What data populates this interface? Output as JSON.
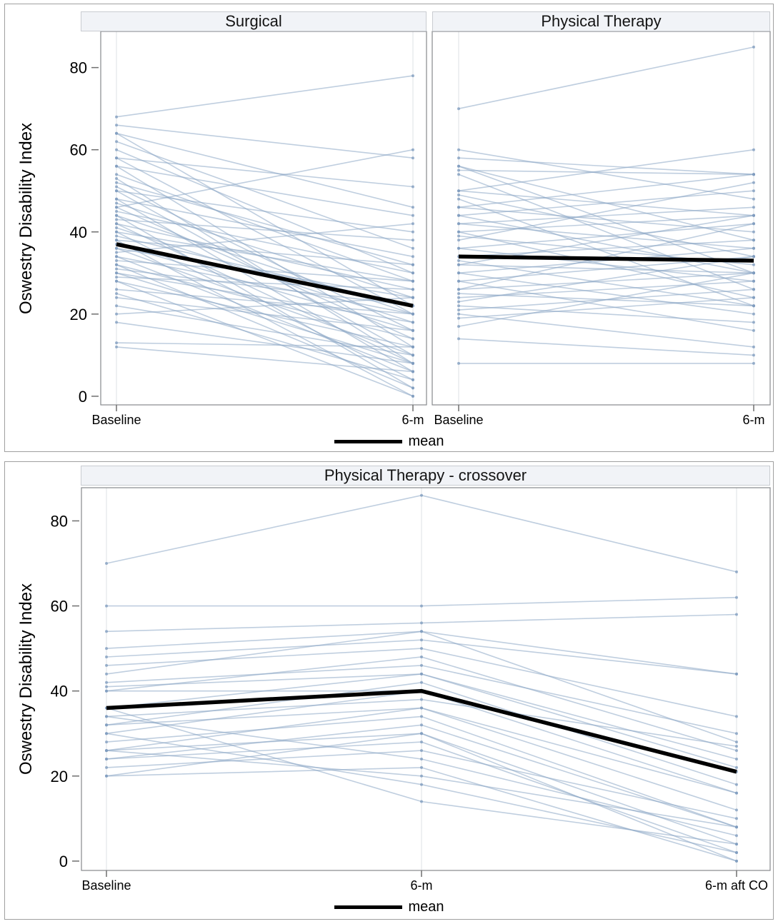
{
  "styles": {
    "line_color": "#8aa5c5",
    "line_opacity": 0.55,
    "dot_color": "#7d9bbd",
    "dot_opacity": 0.75,
    "mean_color": "#000000",
    "grid_color": "#e2e5e9",
    "plot_border_color": "#87898c",
    "tick_color": "#6f6f6f",
    "header_bg": "#f1f3f7",
    "header_border": "#c9ccd1"
  },
  "chart_data": [
    {
      "type": "line",
      "title": "",
      "ylabel": "Oswestry Disability Index",
      "yticks": [
        0,
        20,
        40,
        60,
        80
      ],
      "ylim": [
        -2.1,
        88.8
      ],
      "legend": [
        "mean"
      ],
      "legend_position": "bottom-center",
      "grid": "vertical-category-only",
      "panels": [
        {
          "title": "Surgical",
          "categories": [
            "Baseline",
            "6-m"
          ],
          "mean": [
            37,
            22
          ],
          "lines": [
            [
              68,
              78
            ],
            [
              66,
              58
            ],
            [
              64,
              46
            ],
            [
              64,
              22
            ],
            [
              62,
              36
            ],
            [
              60,
              30
            ],
            [
              58,
              51
            ],
            [
              58,
              20
            ],
            [
              56,
              44
            ],
            [
              56,
              12
            ],
            [
              54,
              28
            ],
            [
              53,
              8
            ],
            [
              52,
              32
            ],
            [
              51,
              16
            ],
            [
              50,
              40
            ],
            [
              50,
              10
            ],
            [
              48,
              34
            ],
            [
              48,
              6
            ],
            [
              47,
              24
            ],
            [
              46,
              60
            ],
            [
              46,
              14
            ],
            [
              45,
              30
            ],
            [
              44,
              20
            ],
            [
              44,
              2
            ],
            [
              43,
              38
            ],
            [
              42,
              26
            ],
            [
              42,
              8
            ],
            [
              41,
              18
            ],
            [
              40,
              28
            ],
            [
              40,
              4
            ],
            [
              39,
              22
            ],
            [
              38,
              32
            ],
            [
              38,
              0
            ],
            [
              37,
              16
            ],
            [
              36,
              24
            ],
            [
              36,
              10
            ],
            [
              35,
              42
            ],
            [
              34,
              20
            ],
            [
              34,
              6
            ],
            [
              33,
              28
            ],
            [
              32,
              14
            ],
            [
              32,
              2
            ],
            [
              31,
              22
            ],
            [
              30,
              18
            ],
            [
              30,
              8
            ],
            [
              29,
              26
            ],
            [
              28,
              12
            ],
            [
              28,
              0
            ],
            [
              26,
              20
            ],
            [
              25,
              4
            ],
            [
              24,
              16
            ],
            [
              22,
              10
            ],
            [
              20,
              24
            ],
            [
              18,
              8
            ],
            [
              13,
              12
            ],
            [
              12,
              6
            ]
          ]
        },
        {
          "title": "Physical Therapy",
          "categories": [
            "Baseline",
            "6-m"
          ],
          "mean": [
            34,
            33
          ],
          "lines": [
            [
              70,
              85
            ],
            [
              60,
              48
            ],
            [
              58,
              54
            ],
            [
              56,
              38
            ],
            [
              56,
              30
            ],
            [
              55,
              54
            ],
            [
              54,
              26
            ],
            [
              50,
              44
            ],
            [
              50,
              60
            ],
            [
              49,
              34
            ],
            [
              48,
              22
            ],
            [
              46,
              54
            ],
            [
              46,
              40
            ],
            [
              44,
              50
            ],
            [
              44,
              30
            ],
            [
              42,
              46
            ],
            [
              42,
              36
            ],
            [
              40,
              44
            ],
            [
              40,
              24
            ],
            [
              39,
              32
            ],
            [
              38,
              52
            ],
            [
              36,
              28
            ],
            [
              36,
              42
            ],
            [
              34,
              38
            ],
            [
              33,
              22
            ],
            [
              32,
              30
            ],
            [
              32,
              44
            ],
            [
              30,
              36
            ],
            [
              30,
              20
            ],
            [
              28,
              34
            ],
            [
              28,
              16
            ],
            [
              26,
              30
            ],
            [
              26,
              42
            ],
            [
              25,
              22
            ],
            [
              24,
              28
            ],
            [
              23,
              34
            ],
            [
              22,
              18
            ],
            [
              21,
              26
            ],
            [
              20,
              12
            ],
            [
              19,
              24
            ],
            [
              17,
              30
            ],
            [
              14,
              10
            ],
            [
              8,
              8
            ]
          ]
        }
      ]
    },
    {
      "type": "line",
      "title": "",
      "ylabel": "Oswestry Disability Index",
      "yticks": [
        0,
        20,
        40,
        60,
        80
      ],
      "ylim": [
        -2.2,
        87.8
      ],
      "legend": [
        "mean"
      ],
      "legend_position": "bottom-center",
      "grid": "vertical-category-only",
      "panels": [
        {
          "title": "Physical Therapy - crossover",
          "categories": [
            "Baseline",
            "6-m",
            "6-m aft CO"
          ],
          "mean": [
            36,
            40,
            21
          ],
          "lines": [
            [
              70,
              86,
              68
            ],
            [
              60,
              60,
              62
            ],
            [
              54,
              56,
              58
            ],
            [
              50,
              54,
              44
            ],
            [
              48,
              52,
              44
            ],
            [
              46,
              50,
              34
            ],
            [
              44,
              54,
              28
            ],
            [
              42,
              46,
              30
            ],
            [
              41,
              44,
              24
            ],
            [
              40,
              48,
              26
            ],
            [
              40,
              40,
              16
            ],
            [
              36,
              44,
              22
            ],
            [
              34,
              38,
              27
            ],
            [
              32,
              42,
              18
            ],
            [
              32,
              36,
              12
            ],
            [
              30,
              40,
              21
            ],
            [
              28,
              34,
              8
            ],
            [
              26,
              36,
              16
            ],
            [
              26,
              30,
              4
            ],
            [
              24,
              32,
              8
            ],
            [
              24,
              28,
              2
            ],
            [
              22,
              26,
              10
            ],
            [
              20,
              30,
              0
            ],
            [
              20,
              22,
              0
            ],
            [
              34,
              24,
              6
            ],
            [
              30,
              18,
              2
            ],
            [
              36,
              14,
              4
            ],
            [
              26,
              20,
              8
            ]
          ]
        }
      ]
    }
  ]
}
